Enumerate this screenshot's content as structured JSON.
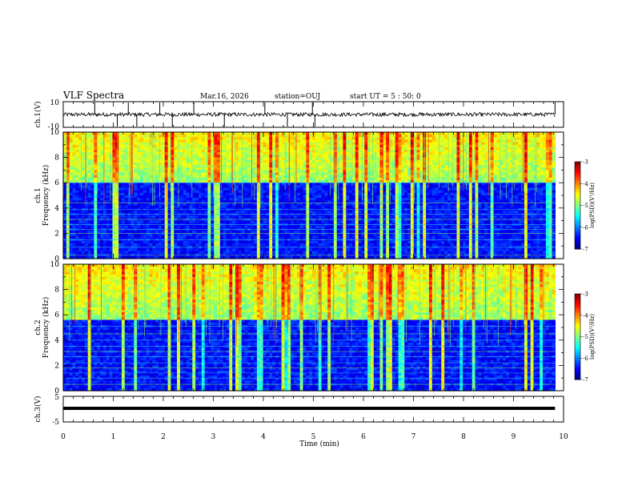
{
  "header": {
    "title": "VLF Spectra",
    "date": "Mar.16, 2026",
    "station": "station=OUJ",
    "start": "start UT =  5 : 50: 0"
  },
  "chart_data": [
    {
      "type": "line",
      "name": "ch1-waveform",
      "ylabel": "ch.1(V)",
      "ylim": [
        -10,
        10
      ],
      "yticks": [
        "10",
        "-10"
      ],
      "baseline": 0,
      "noise_amplitude": 1.5,
      "spikes": [
        0.63,
        1.08,
        1.3,
        1.47,
        1.93,
        2.18,
        2.61,
        3.22,
        4.03,
        4.48,
        4.98,
        5.03,
        9.83
      ]
    },
    {
      "type": "heatmap",
      "name": "ch1-spectrogram",
      "ylabel": "ch.1\nFrequency (kHz)",
      "ylabel_lines": [
        "ch.1",
        "Frequency (kHz)"
      ],
      "xlim": [
        0,
        9.83
      ],
      "ylim": [
        0,
        10
      ],
      "yticks": [
        "0",
        "2",
        "4",
        "6",
        "8",
        "10"
      ],
      "colorbar": {
        "label": "log(PSD)(V²/Hz)",
        "range": [
          -7,
          -3
        ],
        "ticks": [
          "-3",
          "-4",
          "-5",
          "-6",
          "-7"
        ]
      },
      "band_boundary_khz": 6.0,
      "horizontal_lines_khz": [
        0.3,
        0.9,
        1.5,
        2.0,
        2.3,
        2.7,
        3.1,
        3.5,
        3.9,
        4.4,
        6.0
      ]
    },
    {
      "type": "heatmap",
      "name": "ch2-spectrogram",
      "ylabel": "ch.2\nFrequency (kHz)",
      "ylabel_lines": [
        "ch.2",
        "Frequency (kHz)"
      ],
      "xlim": [
        0,
        9.83
      ],
      "ylim": [
        0,
        10
      ],
      "yticks": [
        "0",
        "2",
        "4",
        "6",
        "8",
        "10"
      ],
      "colorbar": {
        "label": "log(PSD)(V²/Hz)",
        "range": [
          -7,
          -3
        ],
        "ticks": [
          "-3",
          "-4",
          "-5",
          "-6",
          "-7"
        ]
      },
      "band_boundary_khz": 5.5,
      "horizontal_lines_khz": [
        0.5,
        1.0,
        1.4,
        1.8,
        2.2,
        2.7,
        3.1,
        3.5,
        4.0,
        4.5,
        5.1
      ]
    },
    {
      "type": "line",
      "name": "ch3-waveform",
      "ylabel": "ch.3(V)",
      "ylim": [
        -5,
        5
      ],
      "yticks": [
        "5",
        "-5"
      ],
      "baseline": 0.3,
      "xlabel": "Time (min)",
      "xlim": [
        0,
        10
      ],
      "xticks": [
        "0",
        "1",
        "2",
        "3",
        "4",
        "5",
        "6",
        "7",
        "8",
        "9",
        "10"
      ]
    }
  ]
}
